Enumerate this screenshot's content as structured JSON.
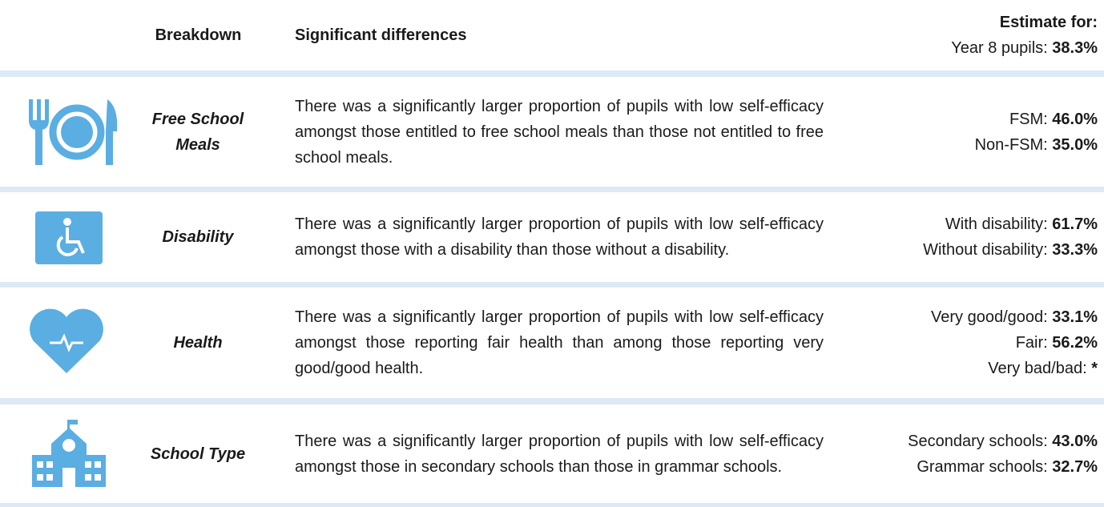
{
  "header": {
    "breakdown": "Breakdown",
    "differences": "Significant differences",
    "estimate_title": "Estimate for:",
    "overall": {
      "label": "Year 8 pupils:",
      "value": "38.3%"
    }
  },
  "rows": [
    {
      "breakdown": "Free School Meals",
      "text": "There was a significantly larger proportion of pupils with low self-efficacy amongst those entitled to free school meals than those not entitled to free school meals.",
      "estimates": [
        {
          "label": "FSM:",
          "value": "46.0%"
        },
        {
          "label": "Non-FSM:",
          "value": "35.0%"
        }
      ]
    },
    {
      "breakdown": "Disability",
      "text": "There was a significantly larger proportion of pupils with low self-efficacy amongst those with a disability than those without a disability.",
      "estimates": [
        {
          "label": "With disability:",
          "value": "61.7%"
        },
        {
          "label": "Without disability:",
          "value": "33.3%"
        }
      ]
    },
    {
      "breakdown": "Health",
      "text": "There was a significantly larger proportion of pupils with low self-efficacy amongst those reporting fair health than among those reporting very good/good health.",
      "estimates": [
        {
          "label": "Very good/good:",
          "value": "33.1%"
        },
        {
          "label": "Fair:",
          "value": "56.2%"
        },
        {
          "label": "Very bad/bad:",
          "value": "*"
        }
      ]
    },
    {
      "breakdown": "School Type",
      "text": "There was a significantly larger proportion of pupils with low self-efficacy amongst those in secondary schools than those in grammar schools.",
      "estimates": [
        {
          "label": "Secondary schools:",
          "value": "43.0%"
        },
        {
          "label": "Grammar schools:",
          "value": "32.7%"
        }
      ]
    }
  ]
}
